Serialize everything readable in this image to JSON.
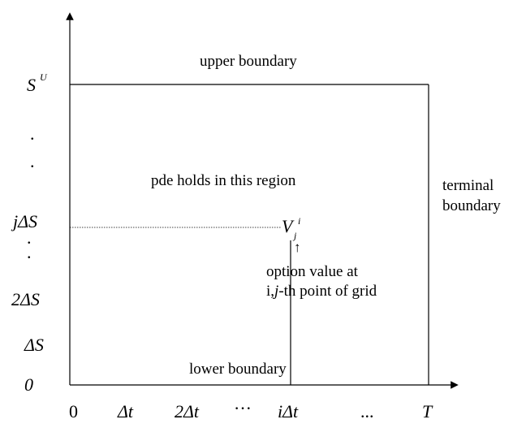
{
  "diagram": {
    "labels": {
      "upper_boundary": "upper boundary",
      "pde_region": "pde holds in this region",
      "terminal_line1": "terminal",
      "terminal_line2": "boundary",
      "lower_boundary": "lower boundary",
      "option_line1": "option value at",
      "option_line2_i": "i,",
      "option_line2_j": "j",
      "option_line2_rest": "-th point of grid",
      "node_V": "V",
      "node_sub": "j",
      "node_sup": "i",
      "arrow_glyph": "↑"
    },
    "y_axis": {
      "S_max": "S",
      "S_max_sup": "U",
      "j_dS": "jΔS",
      "two_dS": "2ΔS",
      "dS": "ΔS",
      "zero": "0",
      "dots": [
        ".",
        ".",
        ".",
        "."
      ]
    },
    "x_axis": {
      "zero": "0",
      "dt": "Δt",
      "two_dt": "2Δt",
      "ellipsis1": "···",
      "i_dt": "iΔt",
      "ellipsis2": "...",
      "T": "T"
    }
  }
}
